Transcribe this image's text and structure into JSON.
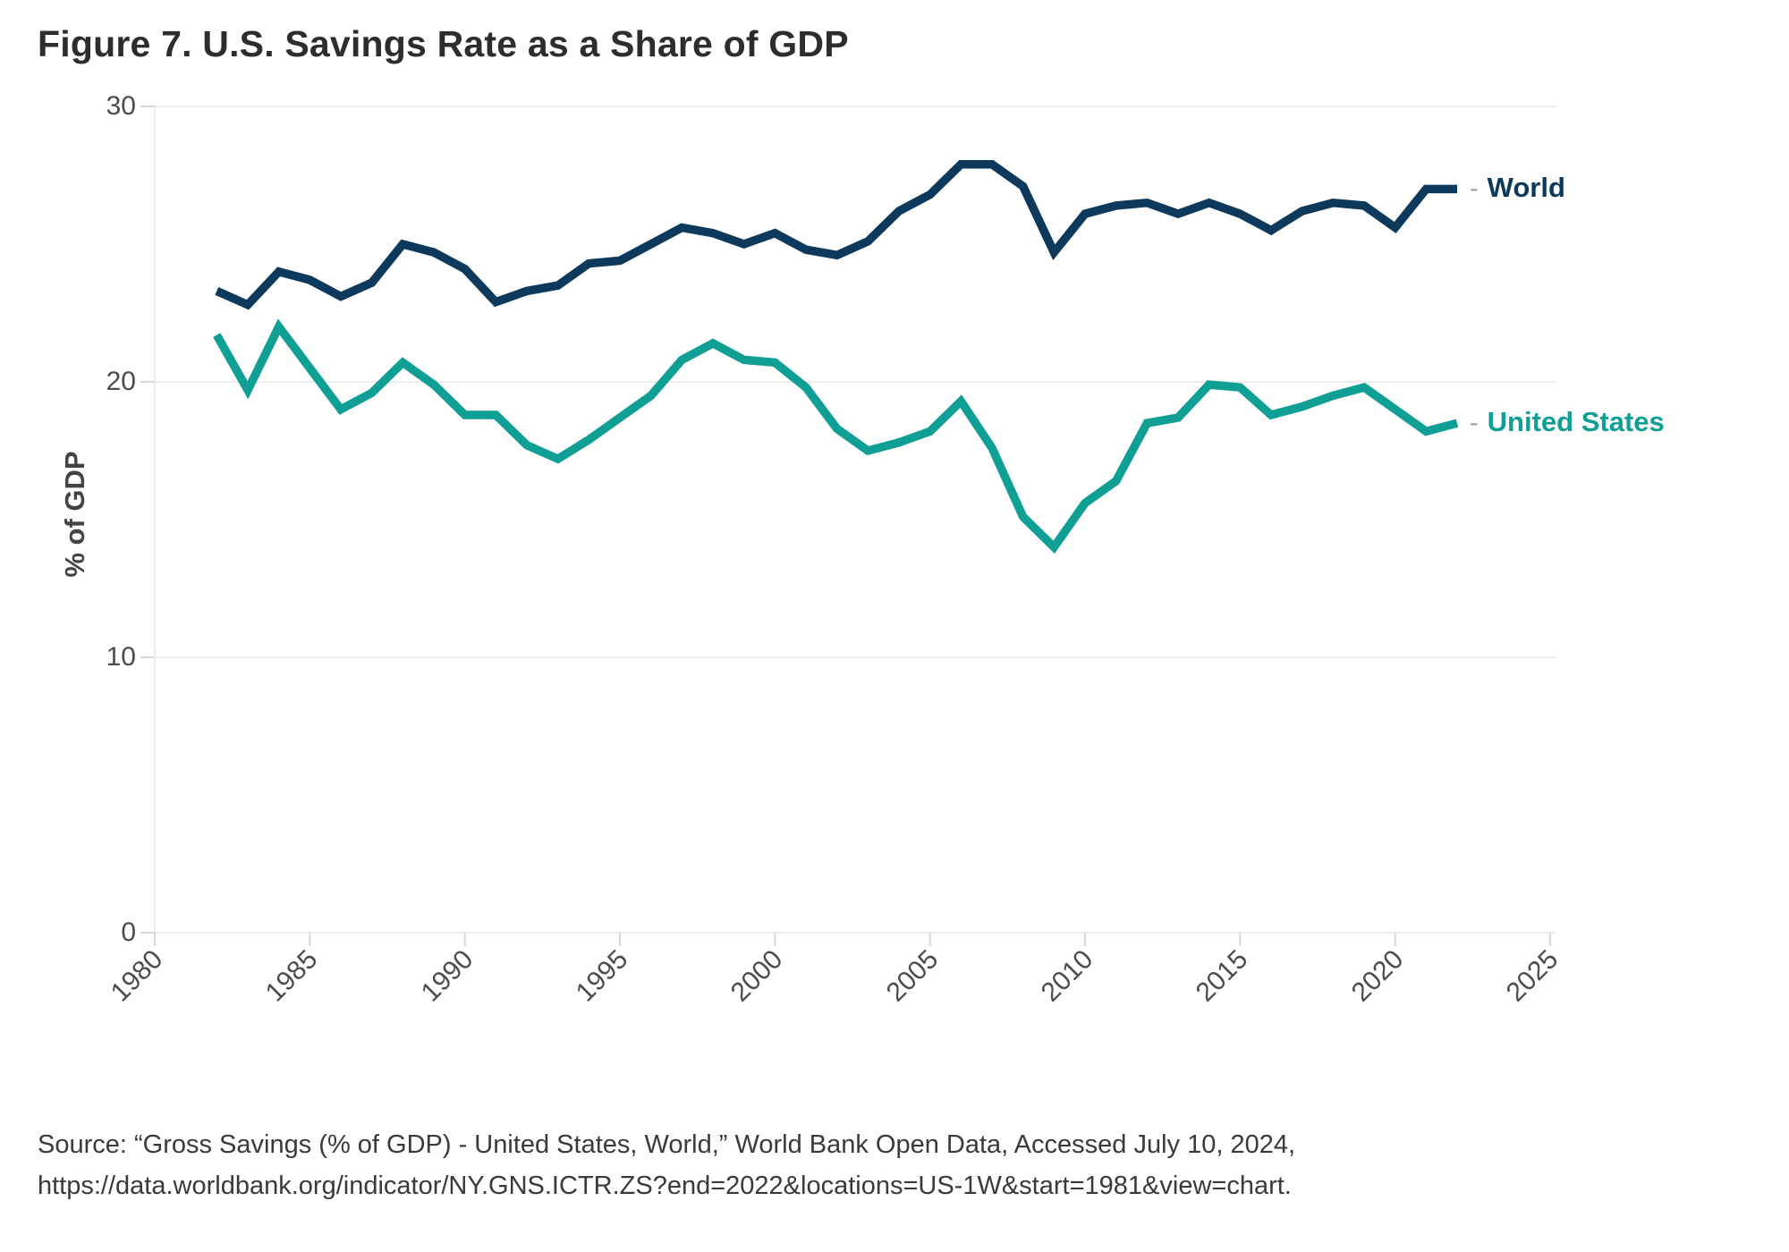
{
  "title": "Figure 7. U.S. Savings Rate as a Share of GDP",
  "source": {
    "line1": "Source: “Gross Savings (% of GDP) - United States, World,” World Bank Open Data, Accessed July 10, 2024,",
    "line2": "https://data.worldbank.org/indicator/NY.GNS.ICTR.ZS?end=2022&locations=US-1W&start=1981&view=chart."
  },
  "colors": {
    "world_line": "#0d3a5c",
    "us_line": "#0f9f94",
    "gridline": "#ececec",
    "tick": "#d8d8d8",
    "tick_text": "#4c4c4e",
    "title_text": "#2d2d2f",
    "legend_dash": "#98a1a8"
  },
  "chart_data": {
    "type": "line",
    "title": "Figure 7. U.S. Savings Rate as a Share of GDP",
    "xlabel": "",
    "ylabel": "% of GDP",
    "xlim": [
      1980,
      2025
    ],
    "ylim": [
      0,
      30
    ],
    "x_ticks": [
      1980,
      1985,
      1990,
      1995,
      2000,
      2005,
      2010,
      2015,
      2020,
      2025
    ],
    "y_ticks": [
      0,
      10,
      20,
      30
    ],
    "grid": "horizontal",
    "legend_position": "right-of-line-end",
    "legend_dash": "-",
    "x": [
      1982,
      1983,
      1984,
      1985,
      1986,
      1987,
      1988,
      1989,
      1990,
      1991,
      1992,
      1993,
      1994,
      1995,
      1996,
      1997,
      1998,
      1999,
      2000,
      2001,
      2002,
      2003,
      2004,
      2005,
      2006,
      2007,
      2008,
      2009,
      2010,
      2011,
      2012,
      2013,
      2014,
      2015,
      2016,
      2017,
      2018,
      2019,
      2020,
      2021,
      2022
    ],
    "series": [
      {
        "name": "World",
        "color": "#0d3a5c",
        "values": [
          23.3,
          22.8,
          24.0,
          23.7,
          23.1,
          23.6,
          25.0,
          24.7,
          24.1,
          22.9,
          23.3,
          23.5,
          24.3,
          24.4,
          25.0,
          25.6,
          25.4,
          25.0,
          25.4,
          24.8,
          24.6,
          25.1,
          26.2,
          26.8,
          27.9,
          27.9,
          27.1,
          24.7,
          26.1,
          26.4,
          26.5,
          26.1,
          26.5,
          26.1,
          25.5,
          26.2,
          26.5,
          26.4,
          25.6,
          27.0,
          27.0
        ]
      },
      {
        "name": "United States",
        "color": "#0f9f94",
        "values": [
          21.7,
          19.7,
          22.0,
          20.5,
          19.0,
          19.6,
          20.7,
          19.9,
          18.8,
          18.8,
          17.7,
          17.2,
          17.9,
          18.7,
          19.5,
          20.8,
          21.4,
          20.8,
          20.7,
          19.8,
          18.3,
          17.5,
          17.8,
          18.2,
          19.3,
          17.6,
          15.1,
          14.0,
          15.6,
          16.4,
          18.5,
          18.7,
          19.9,
          19.8,
          18.8,
          19.1,
          19.5,
          19.8,
          19.0,
          18.2,
          18.5
        ]
      }
    ]
  }
}
